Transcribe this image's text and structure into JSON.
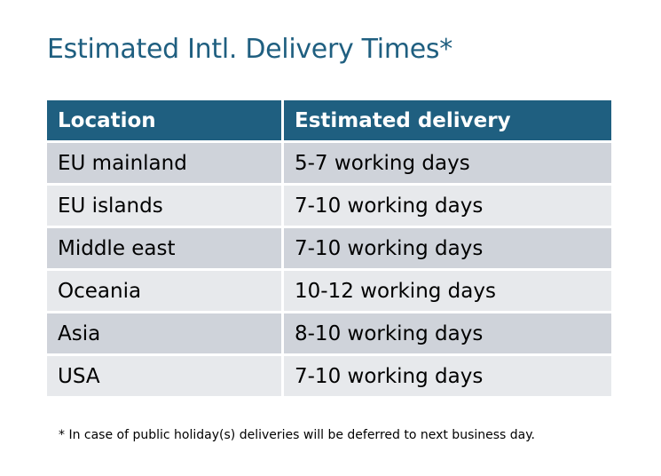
{
  "title": "Estimated Intl. Delivery Times*",
  "table": {
    "headers": [
      "Location",
      "Estimated delivery"
    ],
    "rows": [
      [
        "EU mainland",
        "5-7 working days"
      ],
      [
        "EU islands",
        "7-10 working days"
      ],
      [
        "Middle east",
        "7-10 working days"
      ],
      [
        "Oceania",
        "10-12 working days"
      ],
      [
        "Asia",
        "8-10 working days"
      ],
      [
        "USA",
        "7-10 working days"
      ]
    ]
  },
  "footnote": "* In case of public holiday(s) deliveries will be deferred to next business day.",
  "colors": {
    "header": "#1f5f80",
    "row_dark": "#cfd3da",
    "row_light": "#e7e9ec",
    "title": "#1f5f80"
  }
}
